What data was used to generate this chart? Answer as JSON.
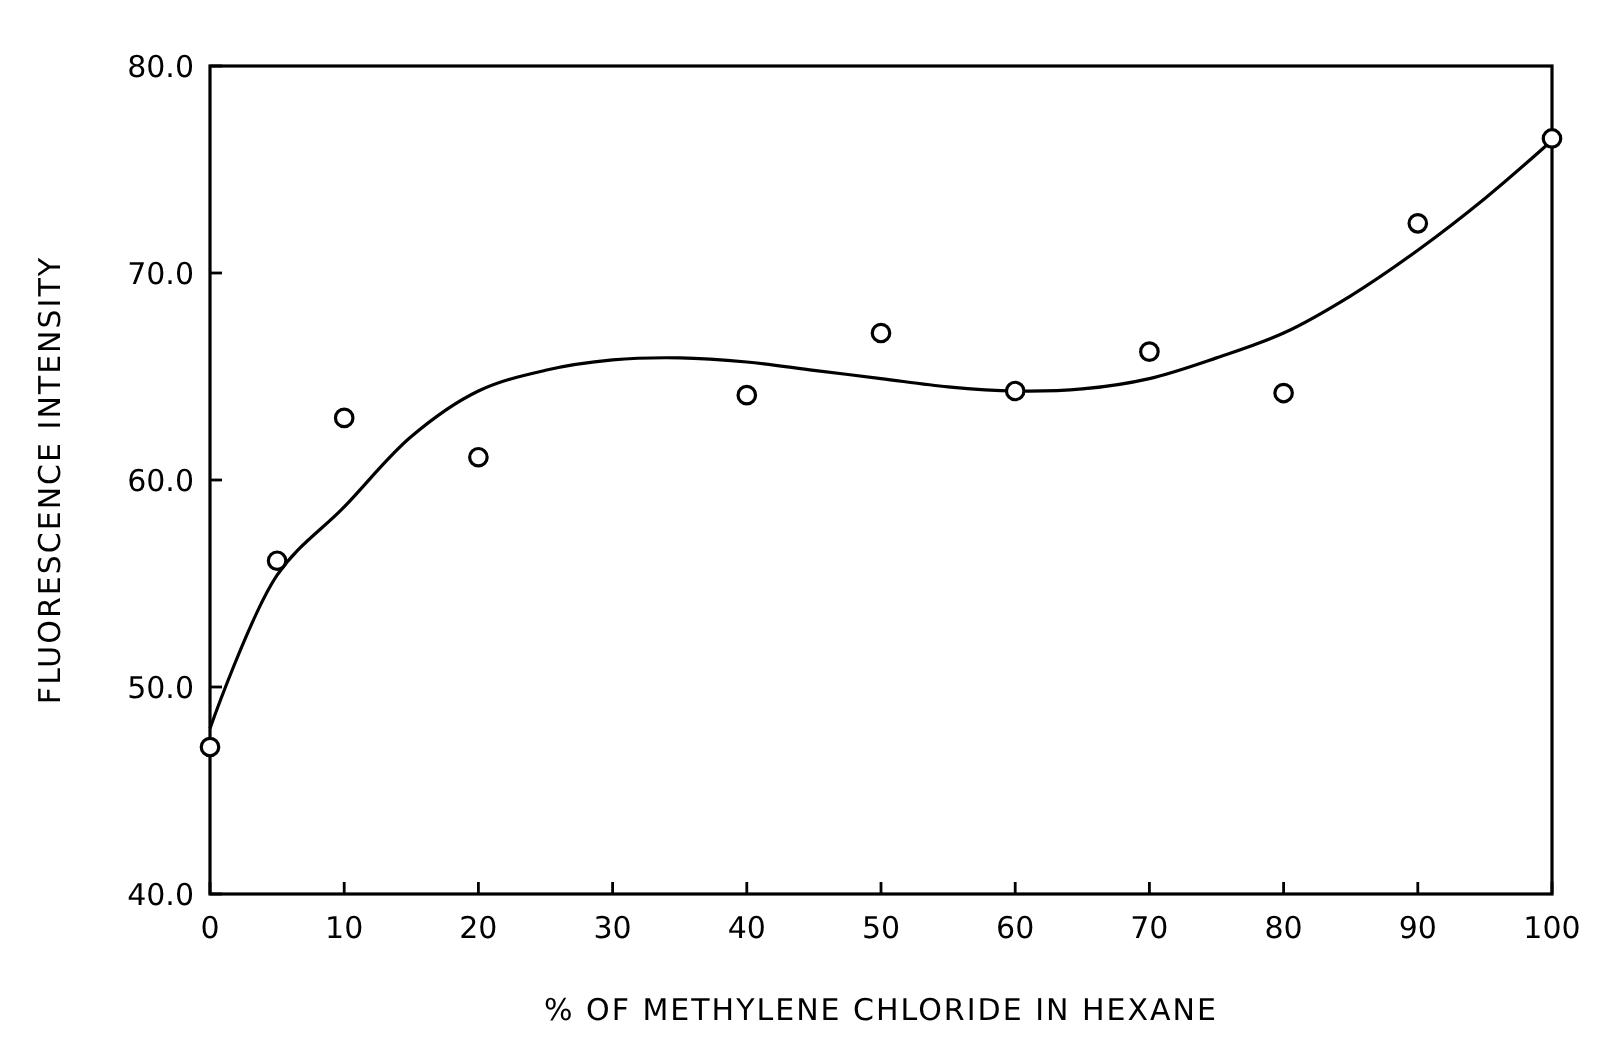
{
  "chart_data": {
    "type": "scatter",
    "xlabel": "% OF METHYLENE CHLORIDE IN HEXANE",
    "ylabel": "FLUORESCENCE INTENSITY",
    "xlim": [
      0,
      100
    ],
    "ylim": [
      40,
      80
    ],
    "xticks": [
      0,
      10,
      20,
      30,
      40,
      50,
      60,
      70,
      80,
      90,
      100
    ],
    "yticks": [
      {
        "value": 40,
        "label": "40.0"
      },
      {
        "value": 50,
        "label": "50.0"
      },
      {
        "value": 60,
        "label": "60.0"
      },
      {
        "value": 70,
        "label": "70.0"
      },
      {
        "value": 80,
        "label": "80.0"
      }
    ],
    "marker": "circle",
    "grid": false,
    "series": [
      {
        "color": "#000000",
        "x": [
          0,
          5,
          10,
          20,
          40,
          50,
          60,
          70,
          80,
          90,
          100
        ],
        "values": [
          47.1,
          56.1,
          63.0,
          61.1,
          64.1,
          67.1,
          64.3,
          66.2,
          64.2,
          72.4,
          76.5
        ]
      },
      {
        "type": "line",
        "marker": "none",
        "color": "#000000",
        "x": [
          0,
          5,
          10,
          15,
          20,
          25,
          30,
          35,
          40,
          45,
          50,
          55,
          60,
          65,
          70,
          75,
          80,
          85,
          90,
          95,
          100
        ],
        "values": [
          48,
          55.4,
          58.7,
          62.1,
          64.3,
          65.3,
          65.8,
          65.9,
          65.7,
          65.3,
          64.9,
          64.5,
          64.3,
          64.4,
          64.9,
          65.9,
          67.1,
          68.9,
          71.1,
          73.6,
          76.4
        ]
      }
    ]
  }
}
